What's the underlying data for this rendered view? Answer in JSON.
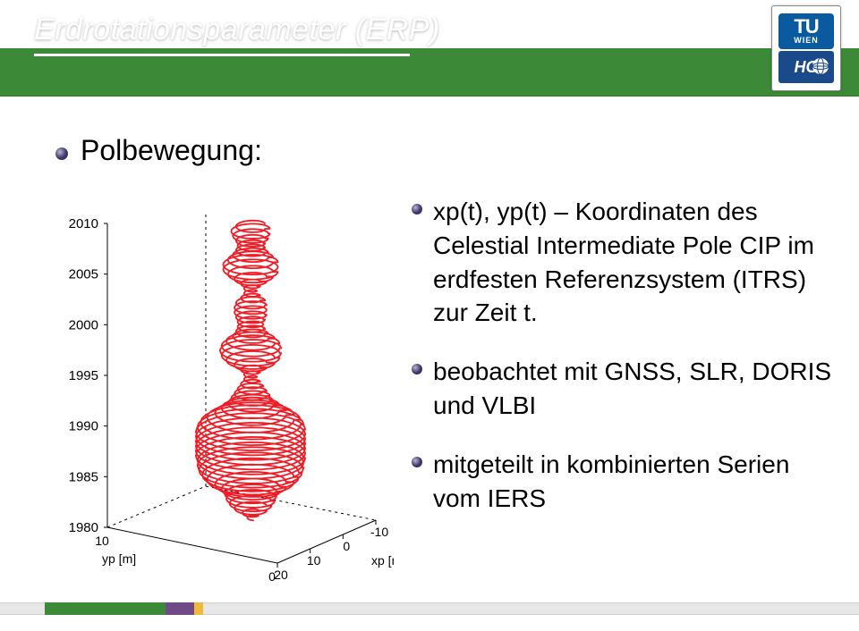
{
  "header": {
    "band_color": "#3c8a37",
    "title": "Erdrotationsparameter (ERP)",
    "underline_color": "#ffffff",
    "logo_tu_bg": "#0a5aa0",
    "logo_hg_bg": "#1a4a8a",
    "logo_hg_text": "HG"
  },
  "main_bullet": {
    "dot_color": "#3a3565",
    "text": "Polbewegung:"
  },
  "sub_bullets": {
    "dot_color": "#3a3565",
    "items": [
      "xp(t), yp(t) – Koordinaten des Celestial Intermediate Pole CIP im erdfesten Referenzsystem (ITRS) zur Zeit t.",
      "beobachtet mit GNSS, SLR, DORIS und VLBI",
      "mitgeteilt in kombinierten Serien vom IERS"
    ]
  },
  "plot3d": {
    "z_ticks": [
      "2010",
      "2005",
      "2000",
      "1995",
      "1990",
      "1985",
      "1980"
    ],
    "x_ticks": [
      "20",
      "10",
      "0",
      "-10"
    ],
    "y_ticks": [
      "0",
      "10"
    ],
    "x_label": "xp [m]",
    "y_label": "yp [m]",
    "axis_color": "#000000",
    "hidden_axis_dash": "3,4",
    "spiral_color": "#ee1c25",
    "spiral_width": 1.8,
    "background": "#ffffff",
    "ellipse_amps": [
      2,
      5,
      10,
      13,
      15,
      16,
      18,
      22,
      27,
      30,
      32,
      33,
      33,
      34,
      34,
      34,
      34,
      34,
      34,
      33,
      31,
      27,
      22,
      18,
      14,
      12,
      10,
      8,
      6,
      4,
      4,
      6,
      10,
      15,
      18,
      19,
      18,
      15,
      11,
      9,
      8,
      8,
      9,
      10,
      10,
      9,
      6,
      4,
      4,
      6,
      10,
      14,
      17,
      17,
      14,
      11,
      9,
      8,
      9,
      11,
      12,
      9
    ]
  },
  "footer": {
    "bar_bg": "#e7e7e7",
    "green": {
      "color": "#3c8a37",
      "width": 135
    },
    "purple": {
      "color": "#6f4a86",
      "left_offset": 135,
      "width": 32
    },
    "orange": {
      "color": "#efb93a",
      "left_offset": 167,
      "width": 10
    }
  }
}
